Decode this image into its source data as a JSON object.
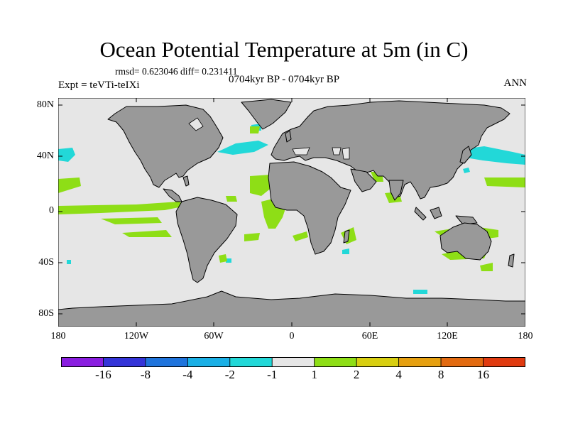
{
  "header": {
    "title": "Ocean Potential Temperature at 5m (in C)",
    "stats": "rmsd= 0.623046 diff= 0.231411",
    "experiment": "Expt = teVTi-teIXi",
    "period": "0704kyr BP - 0704kyr BP",
    "season": "ANN"
  },
  "axes": {
    "y_ticks": [
      "80N",
      "40N",
      "0",
      "40S",
      "80S"
    ],
    "x_ticks": [
      "180",
      "120W",
      "60W",
      "0",
      "60E",
      "120E",
      "180"
    ]
  },
  "colors": {
    "land": "#999999",
    "ocean": "#e6e6e6",
    "coast": "#000000"
  },
  "colorbar": {
    "colors": [
      "#8a1ee0",
      "#3434d8",
      "#1f74dc",
      "#1ab0e6",
      "#22d8d8",
      "#e6e6e6",
      "#8ede16",
      "#d8cf10",
      "#e6a010",
      "#e26a10",
      "#e03a10"
    ],
    "labels": [
      "-16",
      "-8",
      "-4",
      "-2",
      "-1",
      "1",
      "2",
      "4",
      "8",
      "16"
    ]
  }
}
